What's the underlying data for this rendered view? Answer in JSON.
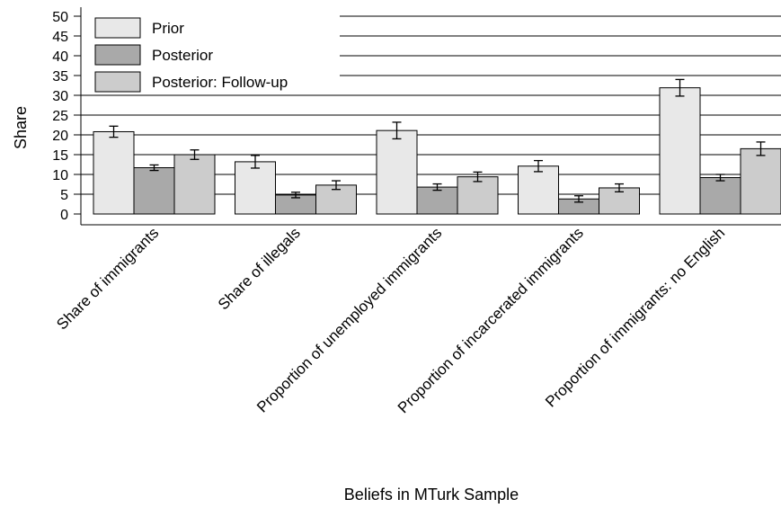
{
  "chart_data": {
    "type": "bar",
    "title": "",
    "xlabel": "Beliefs in MTurk Sample",
    "ylabel": "Share",
    "ylim": [
      0,
      50
    ],
    "yticks": [
      0,
      5,
      10,
      15,
      20,
      25,
      30,
      35,
      40,
      45,
      50
    ],
    "grid": "horizontal",
    "legend_position": "top-left",
    "categories": [
      "Share of immigrants",
      "Share of illegals",
      "Proportion of unemployed immigrants",
      "Proportion of incarcerated immigrants",
      "Proportion of immigrants: no English"
    ],
    "series": [
      {
        "name": "Prior",
        "color": "#e8e8e8",
        "values": [
          20.8,
          13.2,
          21.1,
          12.1,
          31.9
        ],
        "error": [
          1.4,
          1.6,
          2.1,
          1.4,
          2.1
        ]
      },
      {
        "name": "Posterior",
        "color": "#a9a9a9",
        "values": [
          11.7,
          4.8,
          6.8,
          3.8,
          9.2
        ],
        "error": [
          0.7,
          0.7,
          0.8,
          0.8,
          0.8
        ]
      },
      {
        "name": "Posterior: Follow-up",
        "color": "#cccccc",
        "values": [
          15.0,
          7.3,
          9.4,
          6.6,
          16.5
        ],
        "error": [
          1.2,
          1.1,
          1.2,
          1.0,
          1.7
        ]
      }
    ]
  }
}
